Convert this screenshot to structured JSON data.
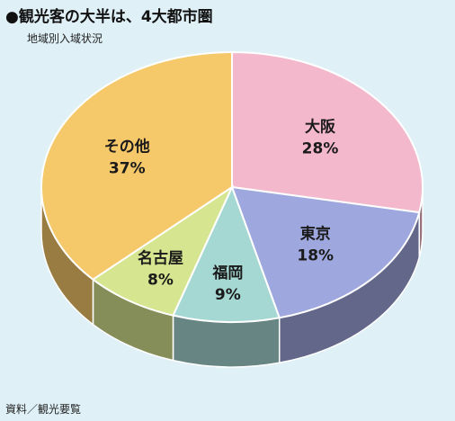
{
  "header": {
    "title": "●観光客の大半は、4大都市圏",
    "subtitle": "地域別入域状況"
  },
  "footer": {
    "source": "資料／観光要覧"
  },
  "chart_data": {
    "type": "pie",
    "title": "●観光客の大半は、4大都市圏",
    "subtitle": "地域別入域状況",
    "categories": [
      "大阪",
      "東京",
      "福岡",
      "名古屋",
      "その他"
    ],
    "values": [
      28,
      18,
      9,
      8,
      37
    ],
    "value_labels": [
      "28%",
      "18%",
      "9%",
      "8%",
      "37%"
    ],
    "colors": {
      "大阪": "#f4b8cc",
      "東京": "#9fa8de",
      "福岡": "#a6d8d3",
      "名古屋": "#d6e58f",
      "その他": "#f5c86a"
    },
    "style": "3d-pie",
    "legend": "none"
  }
}
